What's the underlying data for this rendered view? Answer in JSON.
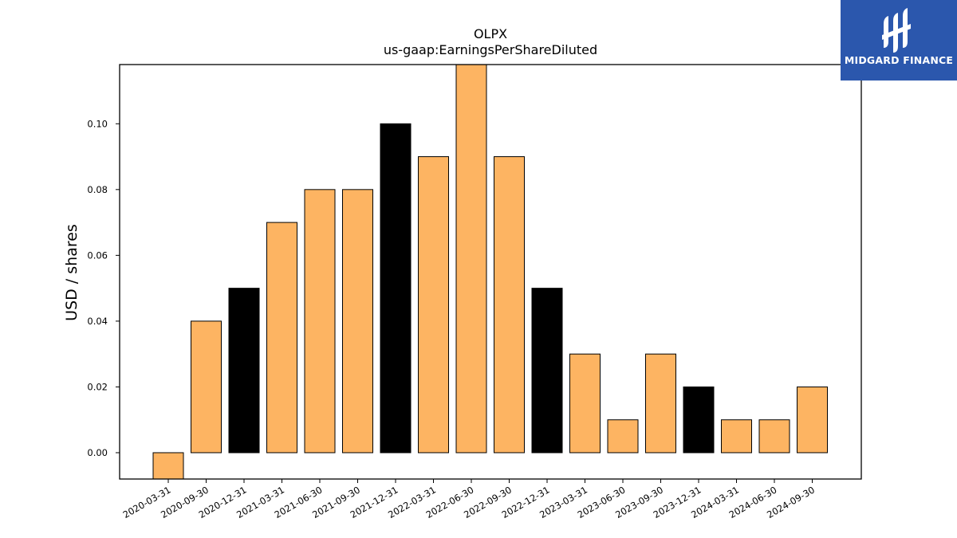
{
  "chart_data": {
    "type": "bar",
    "title": "OLPX",
    "subtitle": "us-gaap:EarningsPerShareDiluted",
    "ylabel": "USD / shares",
    "xlabel": "",
    "ylim": [
      -0.008,
      0.118
    ],
    "yticks": [
      "0.00",
      "0.02",
      "0.04",
      "0.06",
      "0.08",
      "0.10"
    ],
    "grid": false,
    "colors": {
      "default": "#fdb462",
      "highlight": "#000000",
      "edge": "#000000"
    },
    "categories": [
      "2020-03-31",
      "2020-09-30",
      "2020-12-31",
      "2021-03-31",
      "2021-06-30",
      "2021-09-30",
      "2021-12-31",
      "2022-03-31",
      "2022-06-30",
      "2022-09-30",
      "2022-12-31",
      "2023-03-31",
      "2023-06-30",
      "2023-09-30",
      "2023-12-31",
      "2024-03-31",
      "2024-06-30",
      "2024-09-30"
    ],
    "values": [
      -0.01,
      0.04,
      0.05,
      0.07,
      0.08,
      0.08,
      0.1,
      0.09,
      0.12,
      0.09,
      0.05,
      0.03,
      0.01,
      0.03,
      0.02,
      0.01,
      0.01,
      0.02
    ],
    "highlighted": [
      false,
      false,
      true,
      false,
      false,
      false,
      true,
      false,
      false,
      false,
      true,
      false,
      false,
      false,
      true,
      false,
      false,
      false
    ]
  },
  "logo": {
    "text": "MIDGARD FINANCE",
    "background": "#2b57ad"
  }
}
